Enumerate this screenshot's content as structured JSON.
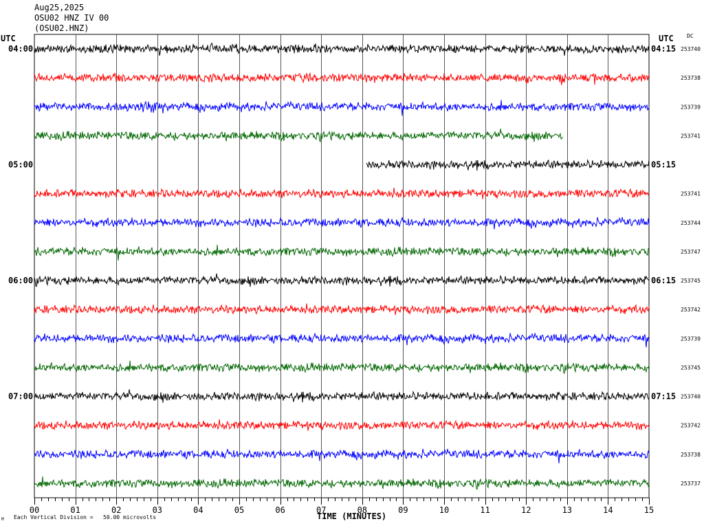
{
  "header": {
    "date": "Aug25,2025",
    "station": "OSU02 HNZ IV 00",
    "channel": "(OSU02.HNZ)"
  },
  "utc_left": "UTC",
  "utc_right": "UTC",
  "dc_label": "DC",
  "footer": {
    "mark": "M",
    "vertical_division": "Each Vertical Division =   50.00 microvolts"
  },
  "chart_data": {
    "type": "line",
    "title": "OSU02 HNZ IV 00",
    "xlabel": "TIME (MINUTES)",
    "x_ticks": [
      "00",
      "01",
      "02",
      "03",
      "04",
      "05",
      "06",
      "07",
      "08",
      "09",
      "10",
      "11",
      "12",
      "13",
      "14",
      "15"
    ],
    "xlim": [
      0,
      15
    ],
    "trace_colors": [
      "#000000",
      "#ff0000",
      "#0000ff",
      "#006600"
    ],
    "rows": [
      {
        "left": "04:00",
        "right": "04:15",
        "dc": "253740",
        "start": 0,
        "end": 15
      },
      {
        "left": "",
        "right": "",
        "dc": "253738",
        "start": 0,
        "end": 15
      },
      {
        "left": "",
        "right": "",
        "dc": "253739",
        "start": 0,
        "end": 15
      },
      {
        "left": "",
        "right": "",
        "dc": "253741",
        "start": 0,
        "end": 12.9
      },
      {
        "left": "05:00",
        "right": "05:15",
        "dc": "",
        "start": 8.1,
        "end": 15
      },
      {
        "left": "",
        "right": "",
        "dc": "253741",
        "start": 0,
        "end": 15
      },
      {
        "left": "",
        "right": "",
        "dc": "253744",
        "start": 0,
        "end": 15
      },
      {
        "left": "",
        "right": "",
        "dc": "253747",
        "start": 0,
        "end": 15
      },
      {
        "left": "06:00",
        "right": "06:15",
        "dc": "253745",
        "start": 0,
        "end": 15
      },
      {
        "left": "",
        "right": "",
        "dc": "253742",
        "start": 0,
        "end": 15
      },
      {
        "left": "",
        "right": "",
        "dc": "253739",
        "start": 0,
        "end": 15
      },
      {
        "left": "",
        "right": "",
        "dc": "253745",
        "start": 0,
        "end": 15
      },
      {
        "left": "07:00",
        "right": "07:15",
        "dc": "253740",
        "start": 0,
        "end": 15
      },
      {
        "left": "",
        "right": "",
        "dc": "253742",
        "start": 0,
        "end": 15
      },
      {
        "left": "",
        "right": "",
        "dc": "253738",
        "start": 0,
        "end": 15
      },
      {
        "left": "",
        "right": "",
        "dc": "253737",
        "start": 0,
        "end": 15
      }
    ]
  }
}
